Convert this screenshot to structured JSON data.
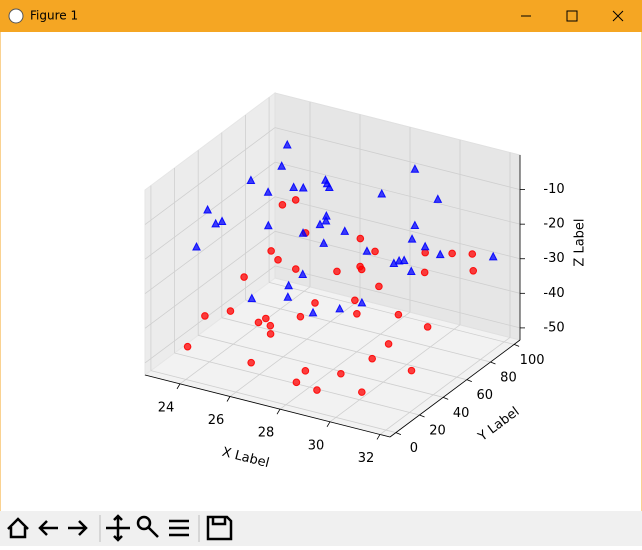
{
  "window": {
    "title": "Figure 1"
  },
  "chart_data": {
    "type": "scatter3d",
    "xlabel": "X Label",
    "ylabel": "Y Label",
    "zlabel": "Z Label",
    "xlim": [
      22.6,
      32.4
    ],
    "ylim": [
      -5,
      105
    ],
    "zlim": [
      -53.5,
      0
    ],
    "xticks": [
      24,
      26,
      28,
      30,
      32
    ],
    "yticks": [
      0,
      20,
      40,
      60,
      80,
      100
    ],
    "zticks": [
      -50,
      -40,
      -30,
      -20,
      -10
    ],
    "grid": true,
    "series": [
      {
        "marker": "o",
        "color": "#ff0000",
        "x": [
          23.5,
          24.2,
          25.1,
          26.3,
          27.8,
          28.4,
          29.9,
          31.2,
          30.5,
          24.8,
          25.9,
          27.1,
          28.9,
          30.1,
          31.7,
          23.9,
          26.8,
          29.3,
          27.5,
          25.4,
          24.1,
          30.8,
          28.1,
          26.1,
          31.4,
          29.6,
          23.2,
          27.9,
          25.7,
          30.3,
          24.6,
          28.6,
          26.5,
          31.9,
          29.1,
          27.3,
          25.2,
          23.7,
          30.6,
          28.3
        ],
        "y": [
          12,
          45,
          78,
          23,
          67,
          8,
          55,
          90,
          34,
          61,
          15,
          82,
          41,
          73,
          28,
          95,
          50,
          19,
          86,
          38,
          70,
          5,
          62,
          27,
          48,
          84,
          33,
          11,
          57,
          92,
          25,
          66,
          44,
          76,
          3,
          58,
          36,
          88,
          18,
          52
        ],
        "z": [
          -48,
          -35,
          -29,
          -42,
          -31,
          -45,
          -38,
          -27,
          -40,
          -33,
          -49,
          -28,
          -36,
          -30,
          -44,
          -26,
          -39,
          -47,
          -32,
          -43,
          -34,
          -46,
          -30,
          -41,
          -37,
          -28,
          -45,
          -50,
          -33,
          -29,
          -39,
          -35,
          -42,
          -27,
          -48,
          -31,
          -44,
          -26,
          -40,
          -36
        ]
      },
      {
        "marker": "^",
        "color": "#0000ff",
        "x": [
          23.3,
          24.5,
          25.6,
          26.9,
          28.2,
          29.5,
          30.9,
          31.8,
          24.0,
          27.4,
          29.0,
          30.4,
          25.0,
          26.4,
          28.7,
          31.1,
          23.8,
          27.0,
          30.0,
          25.8,
          28.5,
          24.3,
          26.7,
          29.8,
          31.5,
          23.6,
          27.7,
          30.7,
          25.3,
          28.0,
          26.2,
          29.3,
          24.9,
          31.3,
          27.2,
          23.1,
          30.2,
          25.5,
          28.8,
          26.0
        ],
        "y": [
          40,
          20,
          85,
          60,
          10,
          75,
          30,
          95,
          55,
          15,
          88,
          45,
          70,
          5,
          35,
          65,
          90,
          50,
          22,
          80,
          58,
          12,
          42,
          68,
          26,
          78,
          8,
          52,
          92,
          32,
          72,
          18,
          62,
          48,
          98,
          28,
          82,
          38,
          6,
          57
        ],
        "z": [
          -20,
          -12,
          -25,
          -8,
          -18,
          -22,
          -15,
          -28,
          -10,
          -24,
          -6,
          -19,
          -14,
          -27,
          -11,
          -21,
          -9,
          -16,
          -26,
          -13,
          -23,
          -7,
          -17,
          -29,
          -12,
          -20,
          -25,
          -10,
          -18,
          -15,
          -22,
          -28,
          -6,
          -14,
          -19,
          -24,
          -11,
          -16,
          -27,
          -9
        ]
      }
    ]
  }
}
